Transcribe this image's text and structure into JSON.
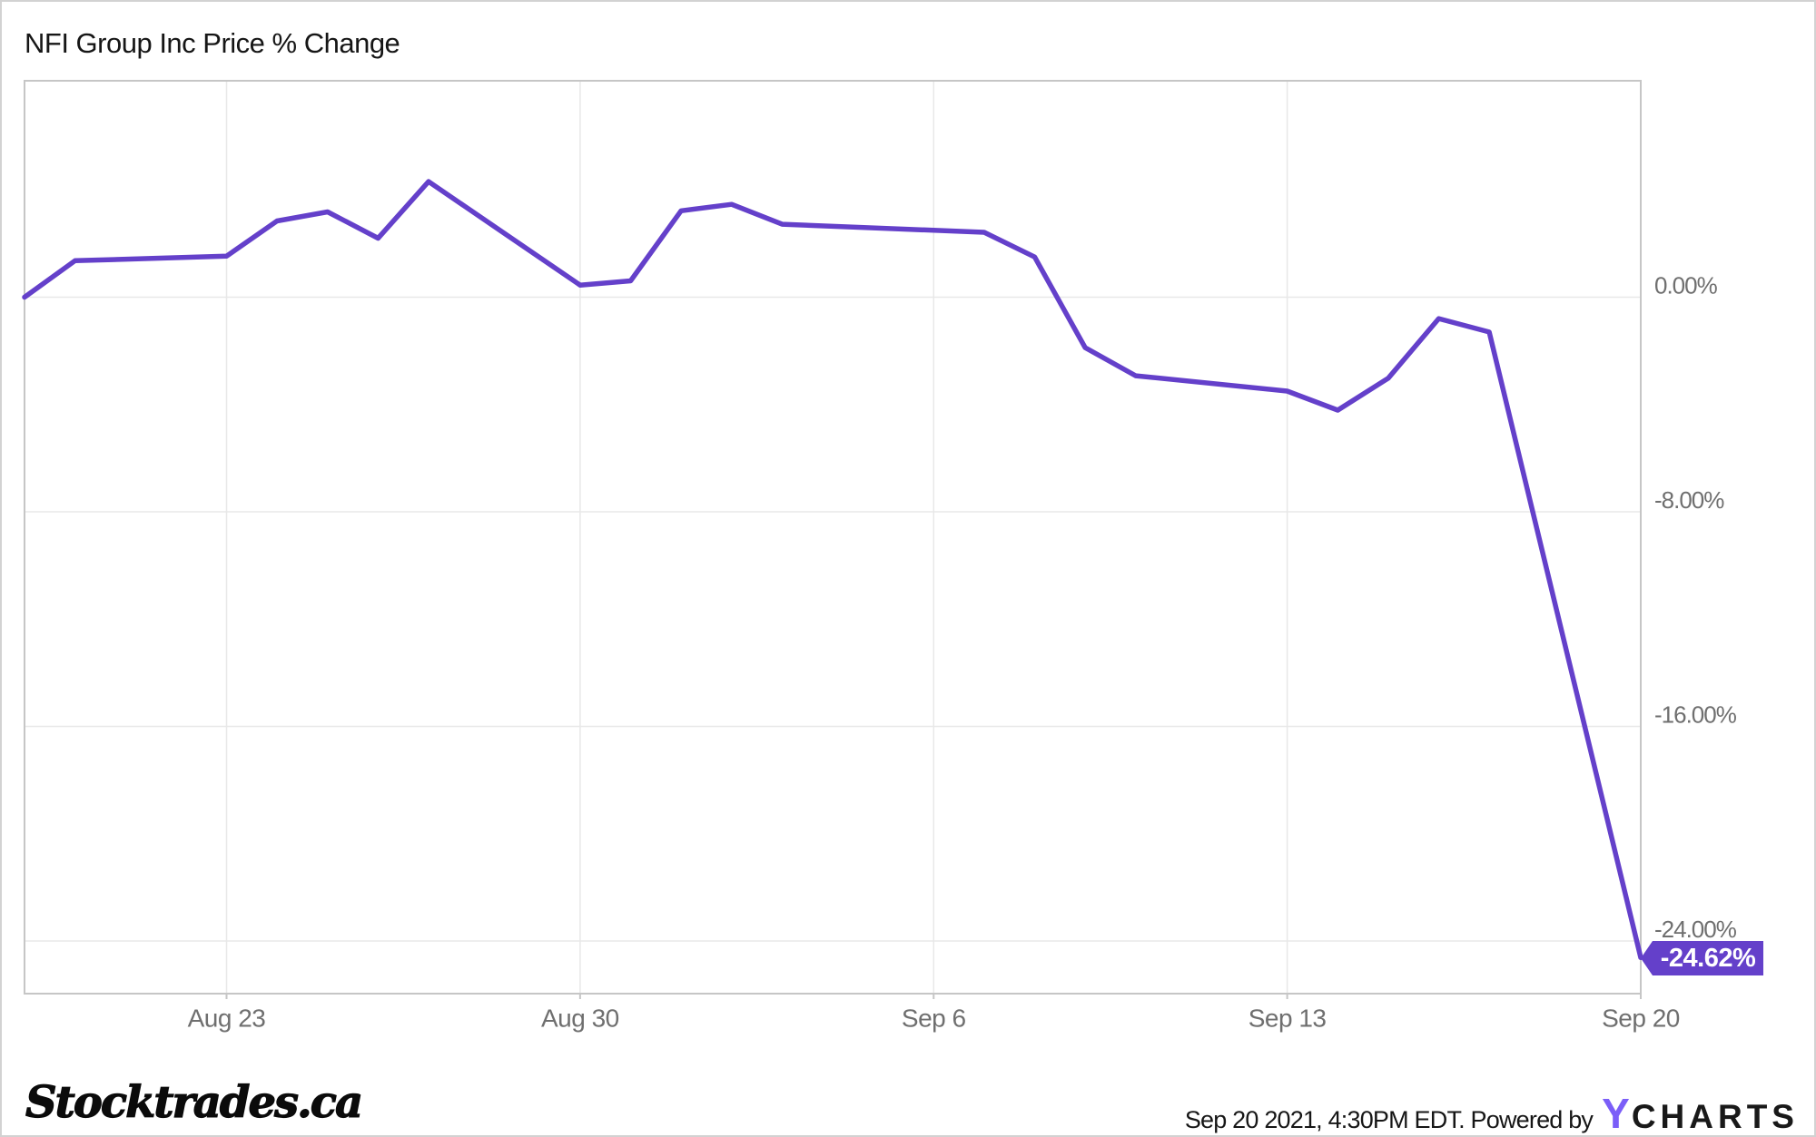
{
  "header": {
    "title": "NFI Group Inc Price % Change"
  },
  "chart_data": {
    "type": "line",
    "title": "NFI Group Inc Price % Change",
    "series": [
      {
        "name": "NFI Group Inc Price % Change",
        "color": "#6440ca",
        "points": [
          {
            "date": "Aug 19",
            "day": 0,
            "value": 0.0
          },
          {
            "date": "Aug 20",
            "day": 1,
            "value": 1.36
          },
          {
            "date": "Aug 23",
            "day": 4,
            "value": 1.53
          },
          {
            "date": "Aug 24",
            "day": 5,
            "value": 2.84
          },
          {
            "date": "Aug 25",
            "day": 6,
            "value": 3.18
          },
          {
            "date": "Aug 26",
            "day": 7,
            "value": 2.2
          },
          {
            "date": "Aug 27",
            "day": 8,
            "value": 4.31
          },
          {
            "date": "Aug 30",
            "day": 11,
            "value": 0.45
          },
          {
            "date": "Aug 31",
            "day": 12,
            "value": 0.61
          },
          {
            "date": "Sep 1",
            "day": 13,
            "value": 3.22
          },
          {
            "date": "Sep 2",
            "day": 14,
            "value": 3.46
          },
          {
            "date": "Sep 3",
            "day": 15,
            "value": 2.72
          },
          {
            "date": "Sep 7",
            "day": 19,
            "value": 2.42
          },
          {
            "date": "Sep 8",
            "day": 20,
            "value": 1.5
          },
          {
            "date": "Sep 9",
            "day": 21,
            "value": -1.88
          },
          {
            "date": "Sep 10",
            "day": 22,
            "value": -2.93
          },
          {
            "date": "Sep 13",
            "day": 25,
            "value": -3.5
          },
          {
            "date": "Sep 14",
            "day": 26,
            "value": -4.21
          },
          {
            "date": "Sep 15",
            "day": 27,
            "value": -3.02
          },
          {
            "date": "Sep 16",
            "day": 28,
            "value": -0.8
          },
          {
            "date": "Sep 17",
            "day": 29,
            "value": -1.3
          },
          {
            "date": "Sep 20",
            "day": 32,
            "value": -24.62
          }
        ]
      }
    ],
    "x_ticks": [
      {
        "label": "Aug 23",
        "day": 4
      },
      {
        "label": "Aug 30",
        "day": 11
      },
      {
        "label": "Sep 6",
        "day": 18
      },
      {
        "label": "Sep 13",
        "day": 25
      },
      {
        "label": "Sep 20",
        "day": 32
      }
    ],
    "y_ticks": [
      {
        "label": "0.00%",
        "value": 0
      },
      {
        "label": "-8.00%",
        "value": -8
      },
      {
        "label": "-16.00%",
        "value": -16
      },
      {
        "label": "-24.00%",
        "value": -24
      }
    ],
    "x_range": [
      "Aug 19",
      "Sep 20"
    ],
    "y_range_pct": [
      8.1,
      -25.9
    ],
    "grid": true,
    "legend_position": "none",
    "last_value_label": "-24.62%",
    "last_value": -24.62
  },
  "footer": {
    "logo_text": "Stocktrades.ca",
    "attribution_prefix": "Sep 20 2021, 4:30PM EDT. Powered by",
    "ycharts_y": "Y",
    "ycharts_rest": "CHARTS"
  },
  "colors": {
    "line": "#6440ca",
    "badge": "#6440ca",
    "badgetext": "#ffffff",
    "grid": "#e8e8e8",
    "frame": "#c6c6c6",
    "label": "#6f6f6f",
    "title": "#161616",
    "ylogo": "#7b5ef8",
    "attr": "#161616"
  }
}
